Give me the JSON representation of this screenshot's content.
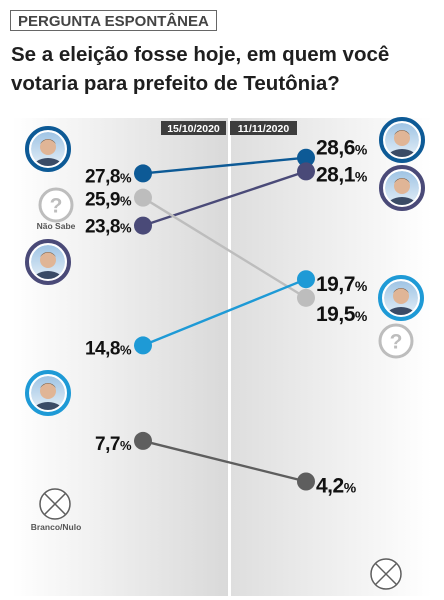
{
  "header": {
    "tag": "PERGUNTA ESPONTÂNEA",
    "title_line1": "Se a eleição fosse hoje, em quem você",
    "title_line2": "votaria para prefeito de Teutônia?"
  },
  "chart_data": {
    "type": "line",
    "x": [
      "15/10/2020",
      "11/11/2020"
    ],
    "series": [
      {
        "key": "candidate_a",
        "values": [
          27.8,
          28.6
        ],
        "labels": [
          "27,8",
          "28,6"
        ],
        "color": "#0d5a96",
        "icon": "candidate-portrait-icon"
      },
      {
        "key": "candidate_b",
        "values": [
          23.8,
          28.1
        ],
        "labels": [
          "23,8",
          "28,1"
        ],
        "color": "#4a4a78",
        "icon": "candidate-portrait-icon"
      },
      {
        "key": "nao_sabe",
        "name": "Não Sabe",
        "values": [
          25.9,
          19.5
        ],
        "labels": [
          "25,9",
          "19,5"
        ],
        "color": "#bdbdbd",
        "icon": "question-mark-icon"
      },
      {
        "key": "candidate_c",
        "values": [
          14.8,
          19.7
        ],
        "labels": [
          "14,8",
          "19,7"
        ],
        "color": "#1e9ad6",
        "icon": "candidate-portrait-icon"
      },
      {
        "key": "branco_nulo",
        "name": "Branco/Nulo",
        "values": [
          7.7,
          4.2
        ],
        "labels": [
          "7,7",
          "4,2"
        ],
        "color": "#5e5e5e",
        "icon": "cross-circle-icon"
      }
    ],
    "unit": "%",
    "grid": false
  }
}
